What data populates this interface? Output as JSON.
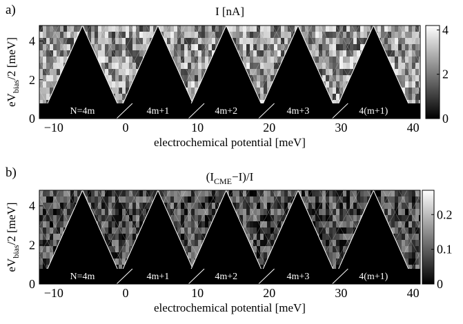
{
  "chart_data": [
    {
      "type": "heatmap",
      "panel_label": "a)",
      "title": "I [nA]",
      "xlabel": "electrochemical potential [meV]",
      "ylabel_parts": {
        "pre": "eV",
        "sub": "bias",
        "post": "/2 [meV]"
      },
      "xlim": [
        -12,
        41
      ],
      "ylim": [
        0,
        4.8
      ],
      "xticks": [
        "−10",
        "0",
        "10",
        "20",
        "30",
        "40"
      ],
      "xtick_values": [
        -10,
        0,
        10,
        20,
        30,
        40
      ],
      "yticks": [
        "0",
        "2",
        "4"
      ],
      "ytick_values": [
        0,
        2,
        4
      ],
      "colorbar": {
        "ticks": [
          "0",
          "2",
          "4"
        ],
        "tick_values": [
          0,
          2,
          4
        ],
        "range": [
          0,
          4.2
        ]
      },
      "diamond_centers": [
        -6,
        4.5,
        14,
        24,
        34.5
      ],
      "diamond_height": 4.8,
      "diamond_labels": [
        "N=4m",
        "4m+1",
        "4m+2",
        "4m+3",
        "4(m+1)"
      ],
      "gap_intensity_range": [
        0.2,
        0.95
      ]
    },
    {
      "type": "heatmap",
      "panel_label": "b)",
      "title_parts": {
        "pre": "(I",
        "sub": "CME",
        "post": "−I)/I"
      },
      "xlabel": "electrochemical potential [meV]",
      "ylabel_parts": {
        "pre": "eV",
        "sub": "bias",
        "post": "/2 [meV]"
      },
      "xlim": [
        -12,
        41
      ],
      "ylim": [
        0,
        4.8
      ],
      "xticks": [
        "−10",
        "0",
        "10",
        "20",
        "30",
        "40"
      ],
      "xtick_values": [
        -10,
        0,
        10,
        20,
        30,
        40
      ],
      "yticks": [
        "0",
        "2",
        "4"
      ],
      "ytick_values": [
        0,
        2,
        4
      ],
      "colorbar": {
        "ticks": [
          "0",
          "0.1",
          "0.2"
        ],
        "tick_values": [
          0,
          0.1,
          0.2
        ],
        "range": [
          0,
          0.27
        ]
      },
      "diamond_centers": [
        -6,
        4.5,
        14,
        24,
        34.5
      ],
      "diamond_height": 4.8,
      "diamond_labels": [
        "N=4m",
        "4m+1",
        "4m+2",
        "4m+3",
        "4(m+1)"
      ],
      "gap_intensity_range": [
        0.0,
        0.6
      ]
    }
  ]
}
